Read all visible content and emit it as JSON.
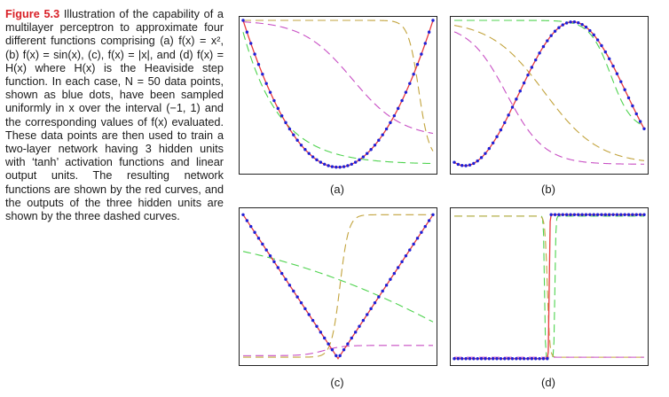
{
  "caption": {
    "label": "Figure 5.3",
    "text": "Illustration of the capability of a multilayer perceptron to approximate four different functions comprising (a) f(x) = x², (b) f(x) = sin(x), (c), f(x) = |x|, and (d) f(x) = H(x) where H(x) is the Heaviside step function. In each case, N = 50 data points, shown as blue dots, have been sampled uniformly in x over the interval (−1, 1) and the corresponding values of f(x) evaluated. These data points are then used to train a two-layer network having 3 hidden units with ‘tanh’ activation functions and linear output units. The resulting network functions are shown by the red curves, and the outputs of the three hidden units are shown by the three dashed curves."
  },
  "colors": {
    "caption_label": "#d92027",
    "dots": "#1f1fd6",
    "network_curve": "#e8383d",
    "hidden_1": "#4fd34f",
    "hidden_2": "#c2a33c",
    "hidden_3": "#c84fc4"
  },
  "chart_data": [
    {
      "type": "line",
      "panel_label": "(a)",
      "function": "x^2",
      "x_range": [
        -1,
        1
      ],
      "n_points": 50,
      "series": [
        {
          "role": "data",
          "marker": "dots"
        },
        {
          "role": "network",
          "style": "solid-red"
        },
        {
          "role": "hidden",
          "style": "dashed-green",
          "shape": "decreasing from left"
        },
        {
          "role": "hidden",
          "style": "dashed-olive",
          "shape": "high then drops at right"
        },
        {
          "role": "hidden",
          "style": "dashed-magenta",
          "shape": "smooth decreasing"
        }
      ]
    },
    {
      "type": "line",
      "panel_label": "(b)",
      "function": "sin(x)",
      "x_range": [
        -1,
        1
      ],
      "n_points": 50
    },
    {
      "type": "line",
      "panel_label": "(c)",
      "function": "|x|",
      "x_range": [
        -1,
        1
      ],
      "n_points": 50
    },
    {
      "type": "line",
      "panel_label": "(d)",
      "function": "H(x)",
      "x_range": [
        -1,
        1
      ],
      "n_points": 50
    }
  ]
}
